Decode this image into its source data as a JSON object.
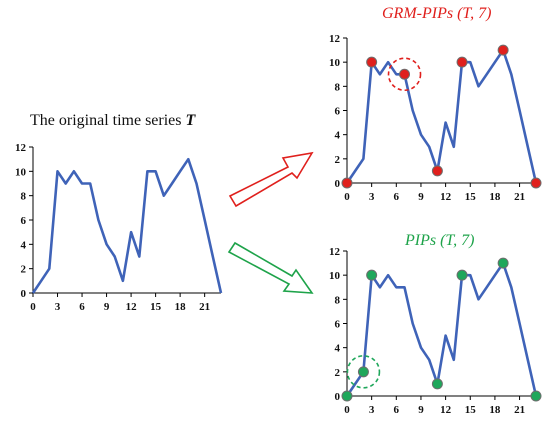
{
  "titles": {
    "original_prefix": "The original time series",
    "original_symbol": "T",
    "grm": "GRM-PIPs (T, 7)",
    "pips": "PIPs (T, 7)"
  },
  "colors": {
    "line": "#3f63b8",
    "grm_marker": "#e0201d",
    "pips_marker": "#1fa75b",
    "arrow_red": "#e0201d",
    "arrow_green": "#1ea34a",
    "axis": "#000000"
  },
  "chart_data": [
    {
      "type": "line",
      "title": "The original time series T",
      "x": [
        0,
        1,
        2,
        3,
        4,
        5,
        6,
        7,
        8,
        9,
        10,
        11,
        12,
        13,
        14,
        15,
        16,
        17,
        18,
        19,
        20,
        21,
        22,
        23
      ],
      "series": [
        {
          "values": [
            0,
            1,
            2,
            10,
            9,
            10,
            9,
            9,
            6,
            4,
            3,
            1,
            5,
            3,
            10,
            10,
            8,
            9,
            10,
            11,
            9,
            6,
            3,
            0
          ]
        }
      ],
      "xticks": [
        0,
        3,
        6,
        9,
        12,
        15,
        18,
        21
      ],
      "yticks": [
        0,
        2,
        4,
        6,
        8,
        10,
        12
      ],
      "xlim": [
        0,
        23
      ],
      "ylim": [
        0,
        12
      ]
    },
    {
      "type": "line",
      "title": "GRM-PIPs (T, 7)",
      "x": [
        0,
        1,
        2,
        3,
        4,
        5,
        6,
        7,
        8,
        9,
        10,
        11,
        12,
        13,
        14,
        15,
        16,
        17,
        18,
        19,
        20,
        21,
        22,
        23
      ],
      "series": [
        {
          "values": [
            0,
            1,
            2,
            10,
            9,
            10,
            9,
            9,
            6,
            4,
            3,
            1,
            5,
            3,
            10,
            10,
            8,
            9,
            10,
            11,
            9,
            6,
            3,
            0
          ]
        }
      ],
      "highlighted_points": [
        {
          "x": 0,
          "y": 0
        },
        {
          "x": 3,
          "y": 10
        },
        {
          "x": 7,
          "y": 9
        },
        {
          "x": 11,
          "y": 1
        },
        {
          "x": 14,
          "y": 10
        },
        {
          "x": 19,
          "y": 11
        },
        {
          "x": 23,
          "y": 0
        }
      ],
      "circled_point": {
        "x": 7,
        "y": 9
      },
      "xticks": [
        0,
        3,
        6,
        9,
        12,
        15,
        18,
        21
      ],
      "yticks": [
        0,
        2,
        4,
        6,
        8,
        10,
        12
      ],
      "xlim": [
        0,
        23
      ],
      "ylim": [
        0,
        12
      ]
    },
    {
      "type": "line",
      "title": "PIPs (T, 7)",
      "x": [
        0,
        1,
        2,
        3,
        4,
        5,
        6,
        7,
        8,
        9,
        10,
        11,
        12,
        13,
        14,
        15,
        16,
        17,
        18,
        19,
        20,
        21,
        22,
        23
      ],
      "series": [
        {
          "values": [
            0,
            1,
            2,
            10,
            9,
            10,
            9,
            9,
            6,
            4,
            3,
            1,
            5,
            3,
            10,
            10,
            8,
            9,
            10,
            11,
            9,
            6,
            3,
            0
          ]
        }
      ],
      "highlighted_points": [
        {
          "x": 0,
          "y": 0
        },
        {
          "x": 2,
          "y": 2
        },
        {
          "x": 3,
          "y": 10
        },
        {
          "x": 11,
          "y": 1
        },
        {
          "x": 14,
          "y": 10
        },
        {
          "x": 19,
          "y": 11
        },
        {
          "x": 23,
          "y": 0
        }
      ],
      "circled_point": {
        "x": 2,
        "y": 2
      },
      "xticks": [
        0,
        3,
        6,
        9,
        12,
        15,
        18,
        21
      ],
      "yticks": [
        0,
        2,
        4,
        6,
        8,
        10,
        12
      ],
      "xlim": [
        0,
        23
      ],
      "ylim": [
        0,
        12
      ]
    }
  ]
}
